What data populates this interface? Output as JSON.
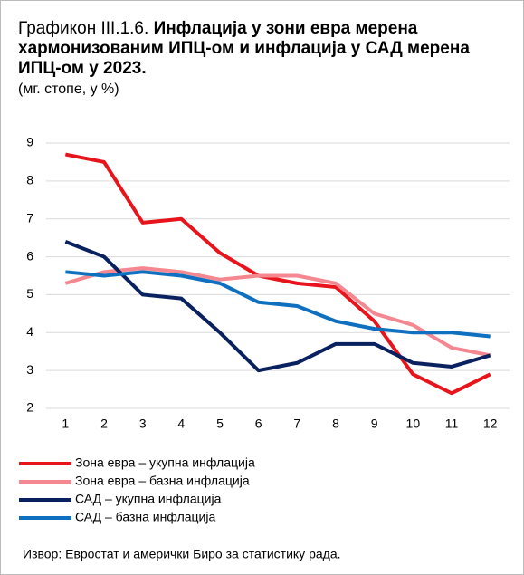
{
  "chart_data": {
    "type": "line",
    "title_label": "Графикон III.1.6.",
    "title": "Инфлација у зони евра мерена хармонизованим  ИПЦ-ом и инфлација у САД мерена ИПЦ-ом у 2023.",
    "subtitle": "(мг. стопе, у %)",
    "source": "Извор: Евростат и амерички Биро за статистику рада.",
    "categories": [
      "1",
      "2",
      "3",
      "4",
      "5",
      "6",
      "7",
      "8",
      "9",
      "10",
      "11",
      "12"
    ],
    "ylim": [
      2,
      9
    ],
    "yticks": [
      2,
      3,
      4,
      5,
      6,
      7,
      8,
      9
    ],
    "grid": true,
    "series": [
      {
        "name": "Зона евра – укупна инфлација",
        "color": "#e8141b",
        "values": [
          8.7,
          8.5,
          6.9,
          7.0,
          6.1,
          5.5,
          5.3,
          5.2,
          4.3,
          2.9,
          2.4,
          2.9
        ]
      },
      {
        "name": "Зона евра – базна инфлација",
        "color": "#f4878f",
        "values": [
          5.3,
          5.6,
          5.7,
          5.6,
          5.4,
          5.5,
          5.5,
          5.3,
          4.5,
          4.2,
          3.6,
          3.4
        ]
      },
      {
        "name": "САД – укупна инфлација",
        "color": "#0a2160",
        "values": [
          6.4,
          6.0,
          5.0,
          4.9,
          4.0,
          3.0,
          3.2,
          3.7,
          3.7,
          3.2,
          3.1,
          3.4
        ]
      },
      {
        "name": "САД – базна инфлација",
        "color": "#1070c0",
        "values": [
          5.6,
          5.5,
          5.6,
          5.5,
          5.3,
          4.8,
          4.7,
          4.3,
          4.1,
          4.0,
          4.0,
          3.9
        ]
      }
    ]
  }
}
